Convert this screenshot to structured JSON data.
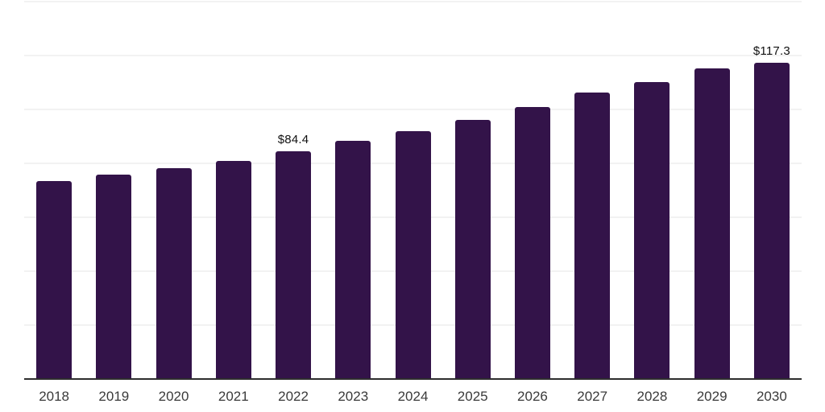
{
  "chart_data": {
    "type": "bar",
    "title": "",
    "xlabel": "",
    "ylabel": "",
    "categories": [
      "2018",
      "2019",
      "2020",
      "2021",
      "2022",
      "2023",
      "2024",
      "2025",
      "2026",
      "2027",
      "2028",
      "2029",
      "2030"
    ],
    "values": [
      73.5,
      75.8,
      78.3,
      81.0,
      84.4,
      88.3,
      91.9,
      96.1,
      100.9,
      106.2,
      110.2,
      115.2,
      117.3
    ],
    "ylim": [
      0,
      140
    ],
    "grid_step": 20,
    "grid": "horizontal-only",
    "legend": false,
    "y_axis_labels_visible": false,
    "currency_prefix": "$",
    "data_labels": [
      {
        "category": "2022",
        "index": 4,
        "text": "$84.4"
      },
      {
        "category": "2030",
        "index": 12,
        "text": "$117.3"
      }
    ]
  },
  "colors": {
    "bar": "#331349",
    "gridline": "#f2f2f2",
    "axis_line": "#2e2e2e",
    "tick_label": "#3a3a3a",
    "value_label": "#111111",
    "background": "#ffffff"
  }
}
